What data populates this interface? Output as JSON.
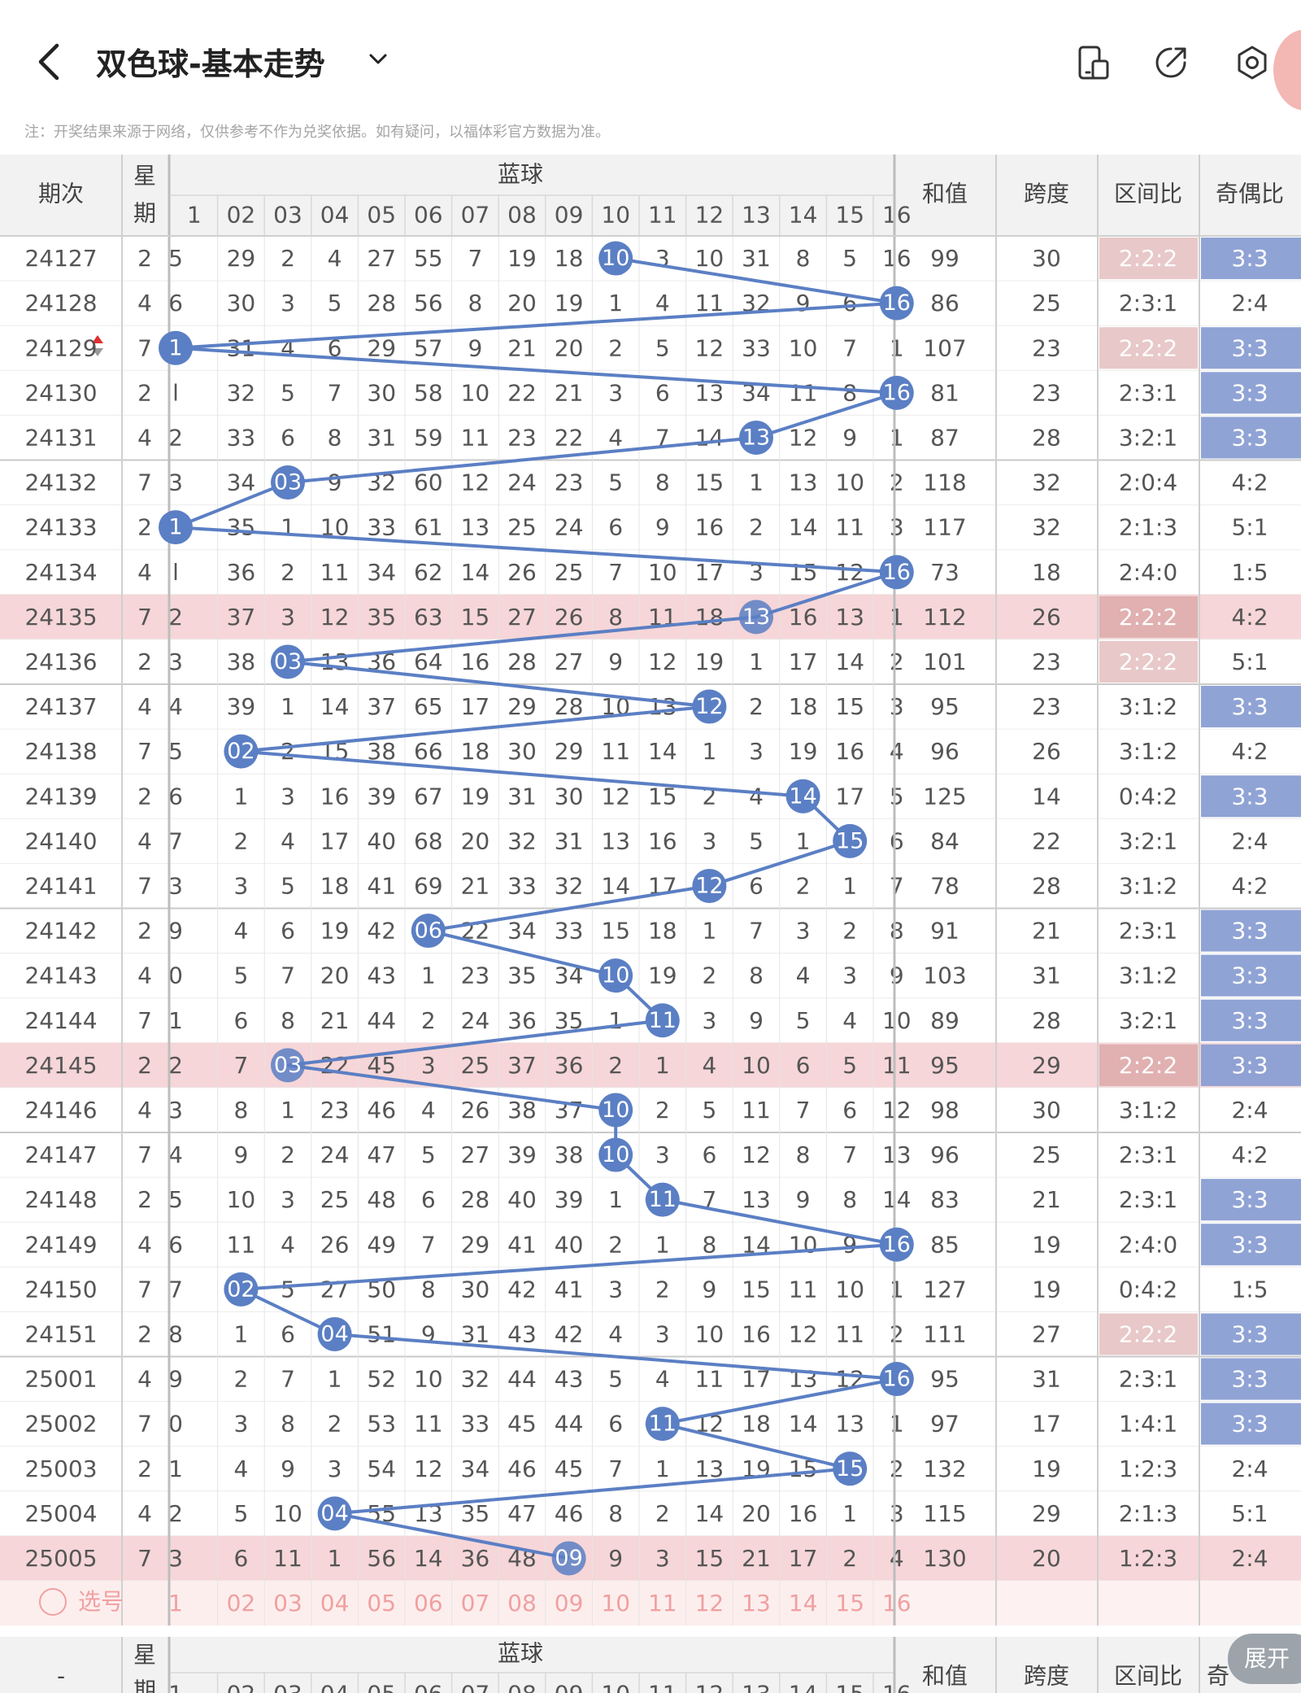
{
  "header": {
    "title": "双色球-基本走势",
    "icons": [
      "back-arrow-icon",
      "chevron-down-icon",
      "phone-icon",
      "share-icon",
      "settings-icon"
    ]
  },
  "note": "注：开奖结果来源于网络，仅供参考不作为兑奖依据。如有疑问，以福体彩官方数据为准。",
  "table_header": {
    "period": "期次",
    "weekday_top": "星",
    "weekday_bottom": "期",
    "blue_ball": "蓝球",
    "sum": "和值",
    "span": "跨度",
    "zone_ratio": "区间比",
    "odd_even_ratio": "奇偶比",
    "blue_numbers": [
      "1",
      "02",
      "03",
      "04",
      "05",
      "06",
      "07",
      "08",
      "09",
      "10",
      "11",
      "12",
      "13",
      "14",
      "15",
      "16"
    ]
  },
  "select_row": {
    "label": "选号",
    "numbers": [
      "1",
      "02",
      "03",
      "04",
      "05",
      "06",
      "07",
      "08",
      "09",
      "10",
      "11",
      "12",
      "13",
      "14",
      "15",
      "16"
    ]
  },
  "footer_header": {
    "period": "-",
    "weekday_top": "星",
    "weekday_bottom": "期",
    "blue_ball": "蓝球",
    "sum": "和值",
    "span": "跨度",
    "zone_ratio": "区间比",
    "odd_even_ratio_partial": "奇",
    "blue_numbers": [
      "1",
      "02",
      "03",
      "04",
      "05",
      "06",
      "07",
      "08",
      "09",
      "10",
      "11",
      "12",
      "13",
      "14",
      "15",
      "16"
    ],
    "expand_button": "展开"
  },
  "colors": {
    "blue_ball": "#5b7fc4",
    "highlight_row": "#f6d6d8",
    "zone_highlight": "#d9a3a3",
    "odd_even_highlight": "#8a9ed3",
    "select_text": "#f0a0a0"
  },
  "rows": [
    {
      "period": "24127",
      "weekday": "2",
      "cells": [
        "5",
        "29",
        "2",
        "4",
        "27",
        "55",
        "7",
        "19",
        "18",
        "10",
        "3",
        "10",
        "31",
        "8",
        "5",
        "16"
      ],
      "hit": 10,
      "sum": "99",
      "span": "30",
      "zone": "2:2:2",
      "oe": "3:3",
      "zone_hl": true,
      "oe_hl": true,
      "row_hl": false
    },
    {
      "period": "24128",
      "weekday": "4",
      "cells": [
        "6",
        "30",
        "3",
        "5",
        "28",
        "56",
        "8",
        "20",
        "19",
        "1",
        "4",
        "11",
        "32",
        "9",
        "6",
        "16"
      ],
      "hit": 16,
      "sum": "86",
      "span": "25",
      "zone": "2:3:1",
      "oe": "2:4",
      "zone_hl": false,
      "oe_hl": false,
      "row_hl": false
    },
    {
      "period": "24129",
      "weekday": "7",
      "cells": [
        "1",
        "31",
        "4",
        "6",
        "29",
        "57",
        "9",
        "21",
        "20",
        "2",
        "5",
        "12",
        "33",
        "10",
        "7",
        "1"
      ],
      "hit": 1,
      "sum": "107",
      "span": "23",
      "zone": "2:2:2",
      "oe": "3:3",
      "zone_hl": true,
      "oe_hl": true,
      "row_hl": false
    },
    {
      "period": "24130",
      "weekday": "2",
      "cells": [
        "l",
        "32",
        "5",
        "7",
        "30",
        "58",
        "10",
        "22",
        "21",
        "3",
        "6",
        "13",
        "34",
        "11",
        "8",
        "16"
      ],
      "hit": 16,
      "sum": "81",
      "span": "23",
      "zone": "2:3:1",
      "oe": "3:3",
      "zone_hl": false,
      "oe_hl": true,
      "row_hl": false
    },
    {
      "period": "24131",
      "weekday": "4",
      "cells": [
        "2",
        "33",
        "6",
        "8",
        "31",
        "59",
        "11",
        "23",
        "22",
        "4",
        "7",
        "14",
        "13",
        "12",
        "9",
        "1"
      ],
      "hit": 13,
      "sum": "87",
      "span": "28",
      "zone": "3:2:1",
      "oe": "3:3",
      "zone_hl": false,
      "oe_hl": true,
      "row_hl": false
    },
    {
      "period": "24132",
      "weekday": "7",
      "cells": [
        "3",
        "34",
        "03",
        "9",
        "32",
        "60",
        "12",
        "24",
        "23",
        "5",
        "8",
        "15",
        "1",
        "13",
        "10",
        "2"
      ],
      "hit": 3,
      "sum": "118",
      "span": "32",
      "zone": "2:0:4",
      "oe": "4:2",
      "zone_hl": false,
      "oe_hl": false,
      "row_hl": false
    },
    {
      "period": "24133",
      "weekday": "2",
      "cells": [
        "1",
        "35",
        "1",
        "10",
        "33",
        "61",
        "13",
        "25",
        "24",
        "6",
        "9",
        "16",
        "2",
        "14",
        "11",
        "3"
      ],
      "hit": 1,
      "sum": "117",
      "span": "32",
      "zone": "2:1:3",
      "oe": "5:1",
      "zone_hl": false,
      "oe_hl": false,
      "row_hl": false
    },
    {
      "period": "24134",
      "weekday": "4",
      "cells": [
        "l",
        "36",
        "2",
        "11",
        "34",
        "62",
        "14",
        "26",
        "25",
        "7",
        "10",
        "17",
        "3",
        "15",
        "12",
        "16"
      ],
      "hit": 16,
      "sum": "73",
      "span": "18",
      "zone": "2:4:0",
      "oe": "1:5",
      "zone_hl": false,
      "oe_hl": false,
      "row_hl": false
    },
    {
      "period": "24135",
      "weekday": "7",
      "cells": [
        "2",
        "37",
        "3",
        "12",
        "35",
        "63",
        "15",
        "27",
        "26",
        "8",
        "11",
        "18",
        "13",
        "16",
        "13",
        "1"
      ],
      "hit": 13,
      "sum": "112",
      "span": "26",
      "zone": "2:2:2",
      "oe": "4:2",
      "zone_hl": true,
      "oe_hl": false,
      "row_hl": true
    },
    {
      "period": "24136",
      "weekday": "2",
      "cells": [
        "3",
        "38",
        "03",
        "13",
        "36",
        "64",
        "16",
        "28",
        "27",
        "9",
        "12",
        "19",
        "1",
        "17",
        "14",
        "2"
      ],
      "hit": 3,
      "sum": "101",
      "span": "23",
      "zone": "2:2:2",
      "oe": "5:1",
      "zone_hl": true,
      "oe_hl": false,
      "row_hl": false
    },
    {
      "period": "24137",
      "weekday": "4",
      "cells": [
        "4",
        "39",
        "1",
        "14",
        "37",
        "65",
        "17",
        "29",
        "28",
        "10",
        "13",
        "12",
        "2",
        "18",
        "15",
        "3"
      ],
      "hit": 12,
      "sum": "95",
      "span": "23",
      "zone": "3:1:2",
      "oe": "3:3",
      "zone_hl": false,
      "oe_hl": true,
      "row_hl": false
    },
    {
      "period": "24138",
      "weekday": "7",
      "cells": [
        "5",
        "02",
        "2",
        "15",
        "38",
        "66",
        "18",
        "30",
        "29",
        "11",
        "14",
        "1",
        "3",
        "19",
        "16",
        "4"
      ],
      "hit": 2,
      "sum": "96",
      "span": "26",
      "zone": "3:1:2",
      "oe": "4:2",
      "zone_hl": false,
      "oe_hl": false,
      "row_hl": false
    },
    {
      "period": "24139",
      "weekday": "2",
      "cells": [
        "6",
        "1",
        "3",
        "16",
        "39",
        "67",
        "19",
        "31",
        "30",
        "12",
        "15",
        "2",
        "4",
        "14",
        "17",
        "5"
      ],
      "hit": 14,
      "sum": "125",
      "span": "14",
      "zone": "0:4:2",
      "oe": "3:3",
      "zone_hl": false,
      "oe_hl": true,
      "row_hl": false
    },
    {
      "period": "24140",
      "weekday": "4",
      "cells": [
        "7",
        "2",
        "4",
        "17",
        "40",
        "68",
        "20",
        "32",
        "31",
        "13",
        "16",
        "3",
        "5",
        "1",
        "15",
        "6"
      ],
      "hit": 15,
      "sum": "84",
      "span": "22",
      "zone": "3:2:1",
      "oe": "2:4",
      "zone_hl": false,
      "oe_hl": false,
      "row_hl": false
    },
    {
      "period": "24141",
      "weekday": "7",
      "cells": [
        "3",
        "3",
        "5",
        "18",
        "41",
        "69",
        "21",
        "33",
        "32",
        "14",
        "17",
        "12",
        "6",
        "2",
        "1",
        "7"
      ],
      "hit": 12,
      "sum": "78",
      "span": "28",
      "zone": "3:1:2",
      "oe": "4:2",
      "zone_hl": false,
      "oe_hl": false,
      "row_hl": false
    },
    {
      "period": "24142",
      "weekday": "2",
      "cells": [
        "9",
        "4",
        "6",
        "19",
        "42",
        "06",
        "22",
        "34",
        "33",
        "15",
        "18",
        "1",
        "7",
        "3",
        "2",
        "8"
      ],
      "hit": 6,
      "sum": "91",
      "span": "21",
      "zone": "2:3:1",
      "oe": "3:3",
      "zone_hl": false,
      "oe_hl": true,
      "row_hl": false
    },
    {
      "period": "24143",
      "weekday": "4",
      "cells": [
        "0",
        "5",
        "7",
        "20",
        "43",
        "1",
        "23",
        "35",
        "34",
        "10",
        "19",
        "2",
        "8",
        "4",
        "3",
        "9"
      ],
      "hit": 10,
      "sum": "103",
      "span": "31",
      "zone": "3:1:2",
      "oe": "3:3",
      "zone_hl": false,
      "oe_hl": true,
      "row_hl": false
    },
    {
      "period": "24144",
      "weekday": "7",
      "cells": [
        "1",
        "6",
        "8",
        "21",
        "44",
        "2",
        "24",
        "36",
        "35",
        "1",
        "11",
        "3",
        "9",
        "5",
        "4",
        "10"
      ],
      "hit": 11,
      "sum": "89",
      "span": "28",
      "zone": "3:2:1",
      "oe": "3:3",
      "zone_hl": false,
      "oe_hl": true,
      "row_hl": false
    },
    {
      "period": "24145",
      "weekday": "2",
      "cells": [
        "2",
        "7",
        "03",
        "22",
        "45",
        "3",
        "25",
        "37",
        "36",
        "2",
        "1",
        "4",
        "10",
        "6",
        "5",
        "11"
      ],
      "hit": 3,
      "sum": "95",
      "span": "29",
      "zone": "2:2:2",
      "oe": "3:3",
      "zone_hl": true,
      "oe_hl": true,
      "row_hl": true
    },
    {
      "period": "24146",
      "weekday": "4",
      "cells": [
        "3",
        "8",
        "1",
        "23",
        "46",
        "4",
        "26",
        "38",
        "37",
        "10",
        "2",
        "5",
        "11",
        "7",
        "6",
        "12"
      ],
      "hit": 10,
      "sum": "98",
      "span": "30",
      "zone": "3:1:2",
      "oe": "2:4",
      "zone_hl": false,
      "oe_hl": false,
      "row_hl": false
    },
    {
      "period": "24147",
      "weekday": "7",
      "cells": [
        "4",
        "9",
        "2",
        "24",
        "47",
        "5",
        "27",
        "39",
        "38",
        "10",
        "3",
        "6",
        "12",
        "8",
        "7",
        "13"
      ],
      "hit": 10,
      "sum": "96",
      "span": "25",
      "zone": "2:3:1",
      "oe": "4:2",
      "zone_hl": false,
      "oe_hl": false,
      "row_hl": false
    },
    {
      "period": "24148",
      "weekday": "2",
      "cells": [
        "5",
        "10",
        "3",
        "25",
        "48",
        "6",
        "28",
        "40",
        "39",
        "1",
        "11",
        "7",
        "13",
        "9",
        "8",
        "14"
      ],
      "hit": 11,
      "sum": "83",
      "span": "21",
      "zone": "2:3:1",
      "oe": "3:3",
      "zone_hl": false,
      "oe_hl": true,
      "row_hl": false
    },
    {
      "period": "24149",
      "weekday": "4",
      "cells": [
        "6",
        "11",
        "4",
        "26",
        "49",
        "7",
        "29",
        "41",
        "40",
        "2",
        "1",
        "8",
        "14",
        "10",
        "9",
        "16"
      ],
      "hit": 16,
      "sum": "85",
      "span": "19",
      "zone": "2:4:0",
      "oe": "3:3",
      "zone_hl": false,
      "oe_hl": true,
      "row_hl": false
    },
    {
      "period": "24150",
      "weekday": "7",
      "cells": [
        "7",
        "02",
        "5",
        "27",
        "50",
        "8",
        "30",
        "42",
        "41",
        "3",
        "2",
        "9",
        "15",
        "11",
        "10",
        "1"
      ],
      "hit": 2,
      "sum": "127",
      "span": "19",
      "zone": "0:4:2",
      "oe": "1:5",
      "zone_hl": false,
      "oe_hl": false,
      "row_hl": false
    },
    {
      "period": "24151",
      "weekday": "2",
      "cells": [
        "8",
        "1",
        "6",
        "04",
        "51",
        "9",
        "31",
        "43",
        "42",
        "4",
        "3",
        "10",
        "16",
        "12",
        "11",
        "2"
      ],
      "hit": 4,
      "sum": "111",
      "span": "27",
      "zone": "2:2:2",
      "oe": "3:3",
      "zone_hl": true,
      "oe_hl": true,
      "row_hl": false
    },
    {
      "period": "25001",
      "weekday": "4",
      "cells": [
        "9",
        "2",
        "7",
        "1",
        "52",
        "10",
        "32",
        "44",
        "43",
        "5",
        "4",
        "11",
        "17",
        "13",
        "12",
        "16"
      ],
      "hit": 16,
      "sum": "95",
      "span": "31",
      "zone": "2:3:1",
      "oe": "3:3",
      "zone_hl": false,
      "oe_hl": true,
      "row_hl": false
    },
    {
      "period": "25002",
      "weekday": "7",
      "cells": [
        "0",
        "3",
        "8",
        "2",
        "53",
        "11",
        "33",
        "45",
        "44",
        "6",
        "11",
        "12",
        "18",
        "14",
        "13",
        "1"
      ],
      "hit": 11,
      "sum": "97",
      "span": "17",
      "zone": "1:4:1",
      "oe": "3:3",
      "zone_hl": false,
      "oe_hl": true,
      "row_hl": false
    },
    {
      "period": "25003",
      "weekday": "2",
      "cells": [
        "1",
        "4",
        "9",
        "3",
        "54",
        "12",
        "34",
        "46",
        "45",
        "7",
        "1",
        "13",
        "19",
        "15",
        "15",
        "2"
      ],
      "hit": 15,
      "sum": "132",
      "span": "19",
      "zone": "1:2:3",
      "oe": "2:4",
      "zone_hl": false,
      "oe_hl": false,
      "row_hl": false
    },
    {
      "period": "25004",
      "weekday": "4",
      "cells": [
        "2",
        "5",
        "10",
        "04",
        "55",
        "13",
        "35",
        "47",
        "46",
        "8",
        "2",
        "14",
        "20",
        "16",
        "1",
        "3"
      ],
      "hit": 4,
      "sum": "115",
      "span": "29",
      "zone": "2:1:3",
      "oe": "5:1",
      "zone_hl": false,
      "oe_hl": false,
      "row_hl": false
    },
    {
      "period": "25005",
      "weekday": "7",
      "cells": [
        "3",
        "6",
        "11",
        "1",
        "56",
        "14",
        "36",
        "48",
        "09",
        "9",
        "3",
        "15",
        "21",
        "17",
        "2",
        "4"
      ],
      "hit": 9,
      "sum": "130",
      "span": "20",
      "zone": "1:2:3",
      "oe": "2:4",
      "zone_hl": false,
      "oe_hl": false,
      "row_hl": true
    }
  ]
}
